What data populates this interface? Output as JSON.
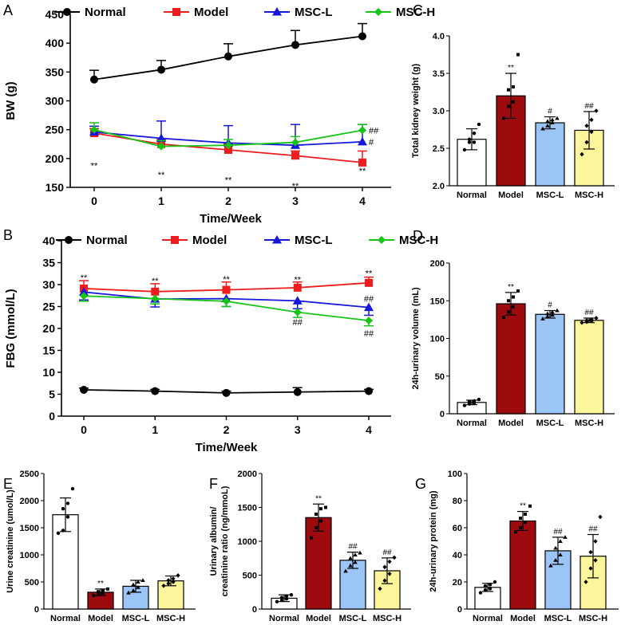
{
  "colors": {
    "Normal": "#000000",
    "Model": "#ee1c1c",
    "MSC-L": "#1616dd",
    "MSC-H": "#16c516",
    "barNormal": "#ffffff",
    "barModel": "#9e0b0f",
    "barMSCL": "#9bc5f5",
    "barMSCH": "#fbf59b"
  },
  "chart_data": [
    {
      "panel": "A",
      "type": "line",
      "xlabel": "Time/Week",
      "ylabel": "BW (g)",
      "x": [
        0,
        1,
        2,
        3,
        4
      ],
      "ylim": [
        150,
        450
      ],
      "yticks": [
        150,
        200,
        250,
        300,
        350,
        400,
        450
      ],
      "series": [
        {
          "name": "Normal",
          "marker": "circle",
          "values": [
            337,
            354,
            377,
            397,
            412
          ],
          "err": [
            16,
            16,
            22,
            25,
            22
          ],
          "errDir": "up"
        },
        {
          "name": "Model",
          "marker": "square",
          "values": [
            244,
            225,
            215,
            205,
            193
          ],
          "err": [
            8,
            8,
            10,
            8,
            20
          ],
          "errDir": "up"
        },
        {
          "name": "MSC-L",
          "marker": "triangle",
          "values": [
            246,
            235,
            227,
            223,
            229
          ],
          "err": [
            10,
            30,
            30,
            36,
            30
          ],
          "errDir": "up"
        },
        {
          "name": "MSC-H",
          "marker": "diamond",
          "values": [
            250,
            221,
            223,
            228,
            249
          ],
          "err": [
            12,
            10,
            10,
            10,
            10
          ],
          "errDir": "up"
        }
      ],
      "annotations": [
        {
          "x": 0,
          "y": 188,
          "text": "**"
        },
        {
          "x": 1,
          "y": 172,
          "text": "**"
        },
        {
          "x": 2,
          "y": 163,
          "text": "**"
        },
        {
          "x": 3,
          "y": 153,
          "text": "**"
        },
        {
          "x": 4,
          "y": 179,
          "text": "**"
        },
        {
          "x": 4,
          "y": 249,
          "text": "##",
          "dx": 1
        },
        {
          "x": 4,
          "y": 229,
          "text": "#",
          "dx": 1
        }
      ]
    },
    {
      "panel": "B",
      "type": "line",
      "xlabel": "Time/Week",
      "ylabel": "FBG (mmol/L)",
      "x": [
        0,
        1,
        2,
        3,
        4
      ],
      "ylim": [
        0,
        40
      ],
      "yticks": [
        0,
        5,
        10,
        15,
        20,
        25,
        30,
        35,
        40
      ],
      "series": [
        {
          "name": "Normal",
          "marker": "circle",
          "values": [
            6.0,
            5.7,
            5.3,
            5.5,
            5.7
          ],
          "err": [
            0.4,
            0.4,
            0.4,
            1.0,
            0.4
          ],
          "errDir": "up"
        },
        {
          "name": "Model",
          "marker": "square",
          "values": [
            29.1,
            28.4,
            28.8,
            29.3,
            30.4
          ],
          "err": [
            1.8,
            1.8,
            1.8,
            1.3,
            1.3
          ],
          "errDir": "up"
        },
        {
          "name": "MSC-L",
          "marker": "triangle",
          "values": [
            28.3,
            26.7,
            26.8,
            26.3,
            24.8
          ],
          "err": [
            1.8,
            1.8,
            1.8,
            1.8,
            1.8
          ],
          "errDir": "down"
        },
        {
          "name": "MSC-H",
          "marker": "diamond",
          "values": [
            27.4,
            26.8,
            26.2,
            23.7,
            21.8
          ],
          "err": [
            1.2,
            1.2,
            1.2,
            1.2,
            1.2
          ],
          "errDir": "down"
        }
      ],
      "annotations": [
        {
          "x": 0,
          "y": 31.6,
          "text": "**"
        },
        {
          "x": 1,
          "y": 30.9,
          "text": "**"
        },
        {
          "x": 2,
          "y": 31.3,
          "text": "**"
        },
        {
          "x": 3,
          "y": 31.2,
          "text": "**"
        },
        {
          "x": 4,
          "y": 32.6,
          "text": "**"
        },
        {
          "x": 3,
          "y": 21.5,
          "text": "##"
        },
        {
          "x": 4,
          "y": 26.8,
          "text": "##"
        },
        {
          "x": 4,
          "y": 18.9,
          "text": "##"
        }
      ]
    },
    {
      "panel": "C",
      "type": "bar",
      "ylabel": "Total kidney weight (g)",
      "categories": [
        "Normal",
        "Model",
        "MSC-L",
        "MSC-H"
      ],
      "values": [
        2.62,
        3.2,
        2.84,
        2.74
      ],
      "err": [
        0.14,
        0.3,
        0.08,
        0.25
      ],
      "ylim": [
        2.0,
        4.0
      ],
      "yticks": [
        "2.0",
        "2.5",
        "3.0",
        "3.5",
        "4.0"
      ],
      "sig": [
        "",
        "**",
        "#",
        "##"
      ],
      "points": [
        [
          2.48,
          2.58,
          2.58,
          2.62,
          2.7,
          2.82
        ],
        [
          2.9,
          3.06,
          3.12,
          3.28,
          3.32,
          3.75
        ],
        [
          2.76,
          2.8,
          2.84,
          2.86,
          2.88,
          2.9
        ],
        [
          2.42,
          2.58,
          2.72,
          2.8,
          2.88,
          3.0
        ]
      ]
    },
    {
      "panel": "D",
      "type": "bar",
      "ylabel": "24h-urinary volume (mL)",
      "categories": [
        "Normal",
        "Model",
        "MSC-L",
        "MSC-H"
      ],
      "values": [
        15,
        146,
        132,
        124
      ],
      "err": [
        3,
        15,
        5,
        3
      ],
      "ylim": [
        0,
        200
      ],
      "yticks": [
        "0",
        "50",
        "100",
        "150",
        "200"
      ],
      "sig": [
        "",
        "**",
        "#",
        "##"
      ],
      "points": [
        [
          11,
          13,
          14,
          16,
          17,
          19
        ],
        [
          128,
          135,
          142,
          150,
          155,
          163
        ],
        [
          126,
          129,
          131,
          133,
          135,
          137
        ],
        [
          121,
          122,
          123,
          124,
          125,
          127
        ]
      ]
    },
    {
      "panel": "E",
      "type": "bar",
      "ylabel": "Urine creatinine (umol/L)",
      "categories": [
        "Normal",
        "Model",
        "MSC-L",
        "MSC-H"
      ],
      "values": [
        1740,
        310,
        420,
        520
      ],
      "err": [
        310,
        60,
        110,
        90
      ],
      "ylim": [
        0,
        2500
      ],
      "yticks": [
        "0",
        "500",
        "1000",
        "1500",
        "2000",
        "2500"
      ],
      "sig": [
        "",
        "**",
        "",
        ""
      ],
      "points": [
        [
          1400,
          1450,
          1700,
          1850,
          1950,
          2220
        ],
        [
          250,
          280,
          300,
          320,
          340,
          370
        ],
        [
          300,
          340,
          400,
          450,
          500,
          530
        ],
        [
          430,
          470,
          500,
          530,
          560,
          620
        ]
      ]
    },
    {
      "panel": "F",
      "type": "bar",
      "ylabel": "Urinary albumin/creatinine ratio (ng/mmoL)",
      "categories": [
        "Normal",
        "Model",
        "MSC-L",
        "MSC-H"
      ],
      "values": [
        160,
        1350,
        720,
        565
      ],
      "err": [
        50,
        200,
        120,
        190
      ],
      "ylim": [
        0,
        2000
      ],
      "yticks": [
        "0",
        "500",
        "1000",
        "1500",
        "2000"
      ],
      "sig": [
        "",
        "**",
        "##",
        "##"
      ],
      "points": [
        [
          110,
          130,
          150,
          170,
          190,
          210
        ],
        [
          1050,
          1200,
          1300,
          1400,
          1480,
          1500
        ],
        [
          560,
          640,
          690,
          750,
          800,
          830
        ],
        [
          300,
          420,
          520,
          620,
          700,
          760
        ]
      ]
    },
    {
      "panel": "G",
      "type": "bar",
      "ylabel": "24h-urinary protein (mg)",
      "categories": [
        "Normal",
        "Model",
        "MSC-L",
        "MSC-H"
      ],
      "values": [
        16,
        65,
        43,
        39
      ],
      "err": [
        3,
        7,
        10,
        16
      ],
      "ylim": [
        0,
        100
      ],
      "yticks": [
        "0",
        "20",
        "40",
        "60",
        "80",
        "100"
      ],
      "sig": [
        "",
        "**",
        "##",
        "##"
      ],
      "points": [
        [
          12,
          14,
          15,
          17,
          18,
          20
        ],
        [
          57,
          60,
          64,
          67,
          70,
          76
        ],
        [
          32,
          36,
          40,
          45,
          50,
          53
        ],
        [
          20,
          30,
          36,
          42,
          50,
          68
        ]
      ]
    }
  ]
}
